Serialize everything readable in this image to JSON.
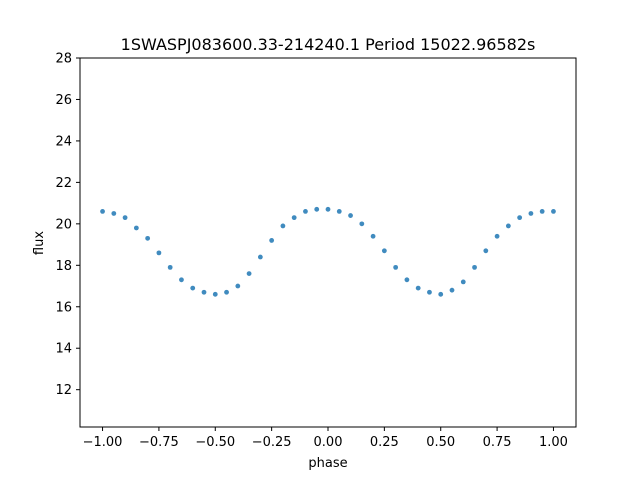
{
  "chart_data": {
    "type": "scatter",
    "title": "1SWASPJ083600.33-214240.1 Period 15022.96582s",
    "xlabel": "phase",
    "ylabel": "flux",
    "xlim": [
      -1.1,
      1.1
    ],
    "ylim": [
      10.2,
      28
    ],
    "xticks": [
      -1.0,
      -0.75,
      -0.5,
      -0.25,
      0.0,
      0.25,
      0.5,
      0.75,
      1.0
    ],
    "xtick_labels": [
      "−1.00",
      "−0.75",
      "−0.50",
      "−0.25",
      "0.00",
      "0.25",
      "0.50",
      "0.75",
      "1.00"
    ],
    "yticks": [
      12,
      14,
      16,
      18,
      20,
      22,
      24,
      26,
      28
    ],
    "ytick_labels": [
      "12",
      "14",
      "16",
      "18",
      "20",
      "22",
      "24",
      "26",
      "28"
    ],
    "grid": false,
    "marker_color": "#1f77b4",
    "series": [
      {
        "points": [
          [
            -1.0,
            20.6
          ],
          [
            -0.95,
            20.5
          ],
          [
            -0.9,
            20.3
          ],
          [
            -0.85,
            19.8
          ],
          [
            -0.8,
            19.3
          ],
          [
            -0.75,
            18.6
          ],
          [
            -0.7,
            17.9
          ],
          [
            -0.65,
            17.3
          ],
          [
            -0.6,
            16.9
          ],
          [
            -0.55,
            16.7
          ],
          [
            -0.5,
            16.6
          ],
          [
            -0.45,
            16.7
          ],
          [
            -0.4,
            17.0
          ],
          [
            -0.35,
            17.6
          ],
          [
            -0.3,
            18.4
          ],
          [
            -0.25,
            19.2
          ],
          [
            -0.2,
            19.9
          ],
          [
            -0.15,
            20.3
          ],
          [
            -0.1,
            20.6
          ],
          [
            -0.05,
            20.7
          ],
          [
            0.0,
            20.7
          ],
          [
            0.05,
            20.6
          ],
          [
            0.1,
            20.4
          ],
          [
            0.15,
            20.0
          ],
          [
            0.2,
            19.4
          ],
          [
            0.25,
            18.7
          ],
          [
            0.3,
            17.9
          ],
          [
            0.35,
            17.3
          ],
          [
            0.4,
            16.9
          ],
          [
            0.45,
            16.7
          ],
          [
            0.5,
            16.6
          ],
          [
            0.55,
            16.8
          ],
          [
            0.6,
            17.2
          ],
          [
            0.65,
            17.9
          ],
          [
            0.7,
            18.7
          ],
          [
            0.75,
            19.4
          ],
          [
            0.8,
            19.9
          ],
          [
            0.85,
            20.3
          ],
          [
            0.9,
            20.5
          ],
          [
            0.95,
            20.6
          ],
          [
            1.0,
            20.6
          ]
        ]
      }
    ]
  }
}
